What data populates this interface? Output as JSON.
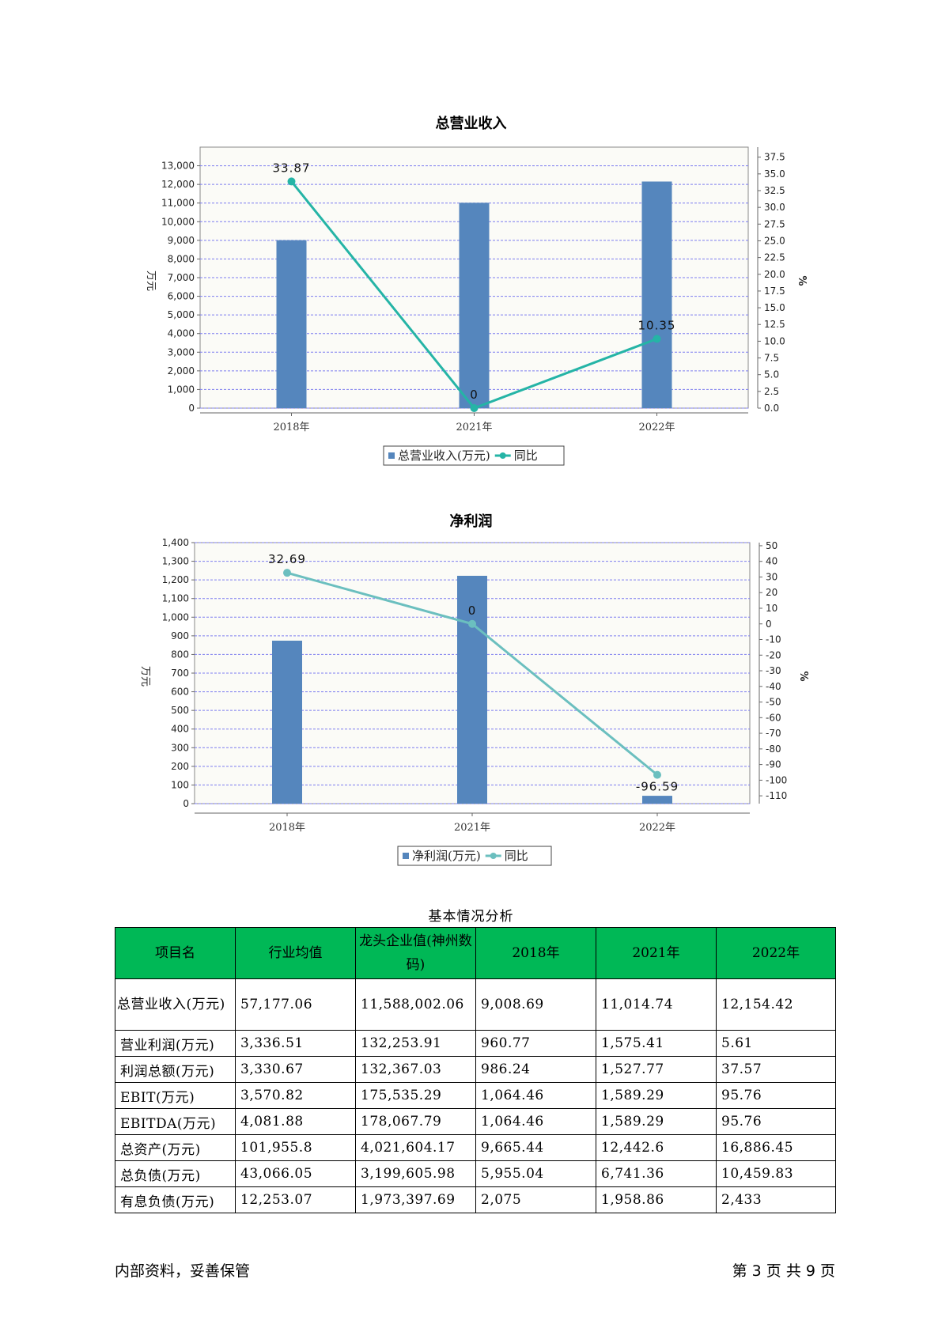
{
  "chart_data": [
    {
      "type": "bar",
      "title": "总营业收入",
      "categories": [
        "2018年",
        "2021年",
        "2022年"
      ],
      "series": [
        {
          "name": "总营业收入(万元)",
          "axis": "left",
          "type": "bar",
          "values": [
            9008.69,
            11014.74,
            12154.42
          ]
        },
        {
          "name": "同比",
          "axis": "right",
          "type": "line",
          "values": [
            33.87,
            0,
            10.35
          ],
          "labels": [
            "33.87",
            "0",
            "10.35"
          ]
        }
      ],
      "ylabel": "万元",
      "ylabel_right": "%",
      "ylim": [
        0,
        14000
      ],
      "ylim_right": [
        0,
        39
      ],
      "yticks": [
        "0",
        "1,000",
        "2,000",
        "3,000",
        "4,000",
        "5,000",
        "6,000",
        "7,000",
        "8,000",
        "9,000",
        "10,000",
        "11,000",
        "12,000",
        "13,000"
      ],
      "yticks_right": [
        "0.0",
        "2.5",
        "5.0",
        "7.5",
        "10.0",
        "12.5",
        "15.0",
        "17.5",
        "20.0",
        "22.5",
        "25.0",
        "27.5",
        "30.0",
        "32.5",
        "35.0",
        "37.5"
      ],
      "legend": [
        "总营业收入(万元)",
        "同比"
      ],
      "legend_position": "bottom",
      "grid": true,
      "colors": {
        "bar": "#5586bd",
        "line": "#25b4a6"
      }
    },
    {
      "type": "bar",
      "title": "净利润",
      "categories": [
        "2018年",
        "2021年",
        "2022年"
      ],
      "series": [
        {
          "name": "净利润(万元)",
          "axis": "left",
          "type": "bar",
          "values": [
            874.0,
            1222.0,
            42.0
          ]
        },
        {
          "name": "同比",
          "axis": "right",
          "type": "line",
          "values": [
            32.69,
            0,
            -96.59
          ],
          "labels": [
            "32.69",
            "0",
            "-96.59"
          ]
        }
      ],
      "ylabel": "万元",
      "ylabel_right": "%",
      "ylim": [
        0,
        1400
      ],
      "ylim_right": [
        -115,
        52
      ],
      "yticks": [
        "0",
        "100",
        "200",
        "300",
        "400",
        "500",
        "600",
        "700",
        "800",
        "900",
        "1,000",
        "1,100",
        "1,200",
        "1,300",
        "1,400"
      ],
      "yticks_right": [
        "-110",
        "-100",
        "-90",
        "-80",
        "-70",
        "-60",
        "-50",
        "-40",
        "-30",
        "-20",
        "-10",
        "0",
        "10",
        "20",
        "30",
        "40",
        "50"
      ],
      "legend": [
        "净利润(万元)",
        "同比"
      ],
      "legend_position": "bottom",
      "grid": true,
      "colors": {
        "bar": "#5586bd",
        "line": "#6bbfbf"
      }
    }
  ],
  "table": {
    "caption": "基本情况分析",
    "headers": [
      "项目名",
      "行业均值",
      "龙头企业值(神州数码)",
      "2018年",
      "2021年",
      "2022年"
    ],
    "rows": [
      [
        "总营业收入(万元)",
        "57,177.06",
        "11,588,002.06",
        "9,008.69",
        "11,014.74",
        "12,154.42"
      ],
      [
        "营业利润(万元)",
        "3,336.51",
        "132,253.91",
        "960.77",
        "1,575.41",
        "5.61"
      ],
      [
        "利润总额(万元)",
        "3,330.67",
        "132,367.03",
        "986.24",
        "1,527.77",
        "37.57"
      ],
      [
        "EBIT(万元)",
        "3,570.82",
        "175,535.29",
        "1,064.46",
        "1,589.29",
        "95.76"
      ],
      [
        "EBITDA(万元)",
        "4,081.88",
        "178,067.79",
        "1,064.46",
        "1,589.29",
        "95.76"
      ],
      [
        "总资产(万元)",
        "101,955.8",
        "4,021,604.17",
        "9,665.44",
        "12,442.6",
        "16,886.45"
      ],
      [
        "总负债(万元)",
        "43,066.05",
        "3,199,605.98",
        "5,955.04",
        "6,741.36",
        "10,459.83"
      ],
      [
        "有息负债(万元)",
        "12,253.07",
        "1,973,397.69",
        "2,075",
        "1,958.86",
        "2,433"
      ]
    ],
    "header_color": "#00b856"
  },
  "footer": {
    "left": "内部资料，妥善保管",
    "right": "第 3 页   共 9 页"
  }
}
